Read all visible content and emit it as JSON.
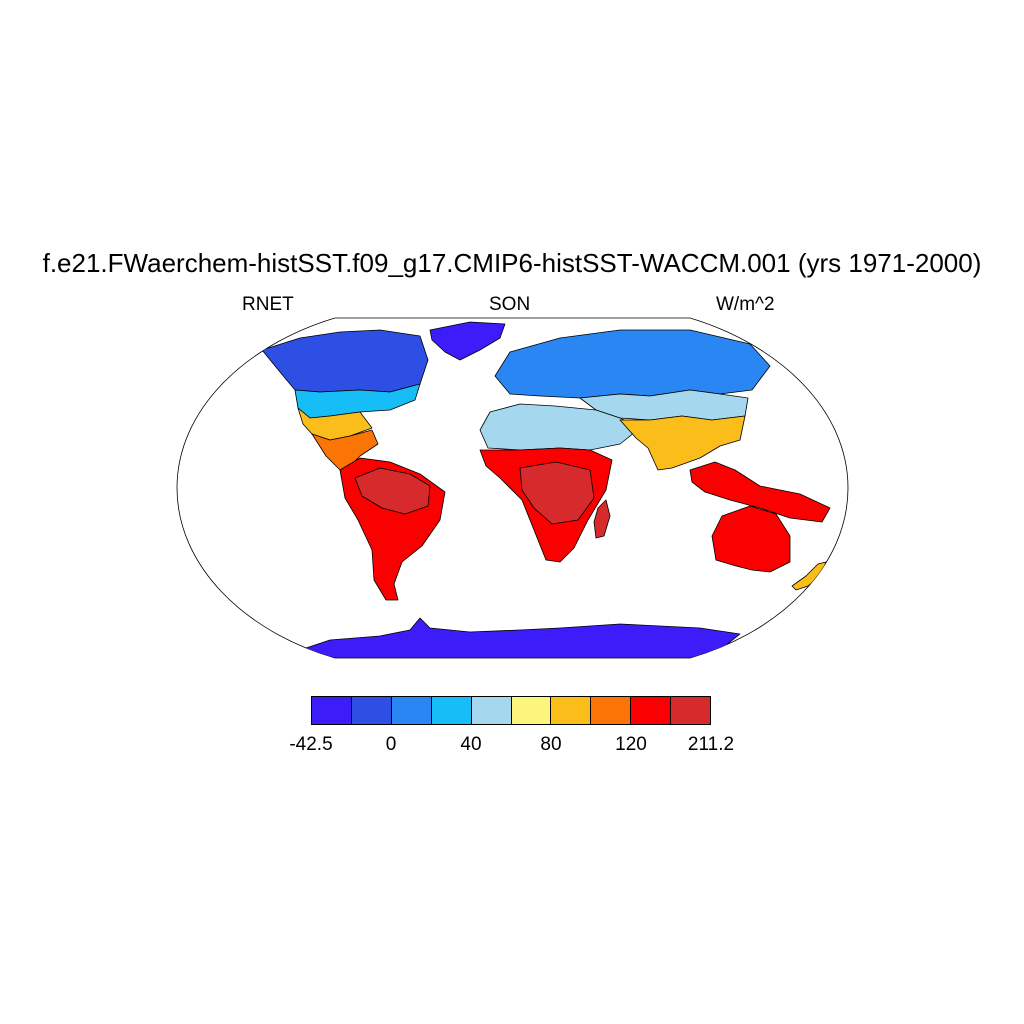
{
  "title": "f.e21.FWaerchem-histSST.f09_g17.CMIP6-histSST-WACCM.001 (yrs 1971-2000)",
  "left_label": "RNET",
  "center_label": "SON",
  "right_label": "W/m^2",
  "projection": "Robinson",
  "colorbar": {
    "colors": [
      "#3c1dfa",
      "#2d4fe4",
      "#2a86f2",
      "#17bdf7",
      "#a5d8ef",
      "#fcf57c",
      "#fbbd1a",
      "#fb7406",
      "#fb0000",
      "#d72a2d"
    ],
    "labels": [
      "-42.5",
      "0",
      "40",
      "80",
      "120",
      "211.2"
    ]
  },
  "regions": [
    {
      "name": "antarctica",
      "level": 0
    },
    {
      "name": "greenland",
      "level": 0
    },
    {
      "name": "arctic-canada",
      "level": 1
    },
    {
      "name": "north-america-mid",
      "level": 3
    },
    {
      "name": "north-america-south",
      "level": 6
    },
    {
      "name": "central-america",
      "level": 7
    },
    {
      "name": "south-america",
      "level": 8
    },
    {
      "name": "amazon-basin",
      "level": 9
    },
    {
      "name": "northern-eurasia",
      "level": 2
    },
    {
      "name": "central-asia",
      "level": 4
    },
    {
      "name": "sahara-middle-east",
      "level": 4
    },
    {
      "name": "south-asia",
      "level": 6
    },
    {
      "name": "africa-tropics",
      "level": 8
    },
    {
      "name": "central-africa",
      "level": 9
    },
    {
      "name": "southeast-asia",
      "level": 8
    },
    {
      "name": "australia",
      "level": 8
    },
    {
      "name": "new-zealand",
      "level": 6
    }
  ]
}
